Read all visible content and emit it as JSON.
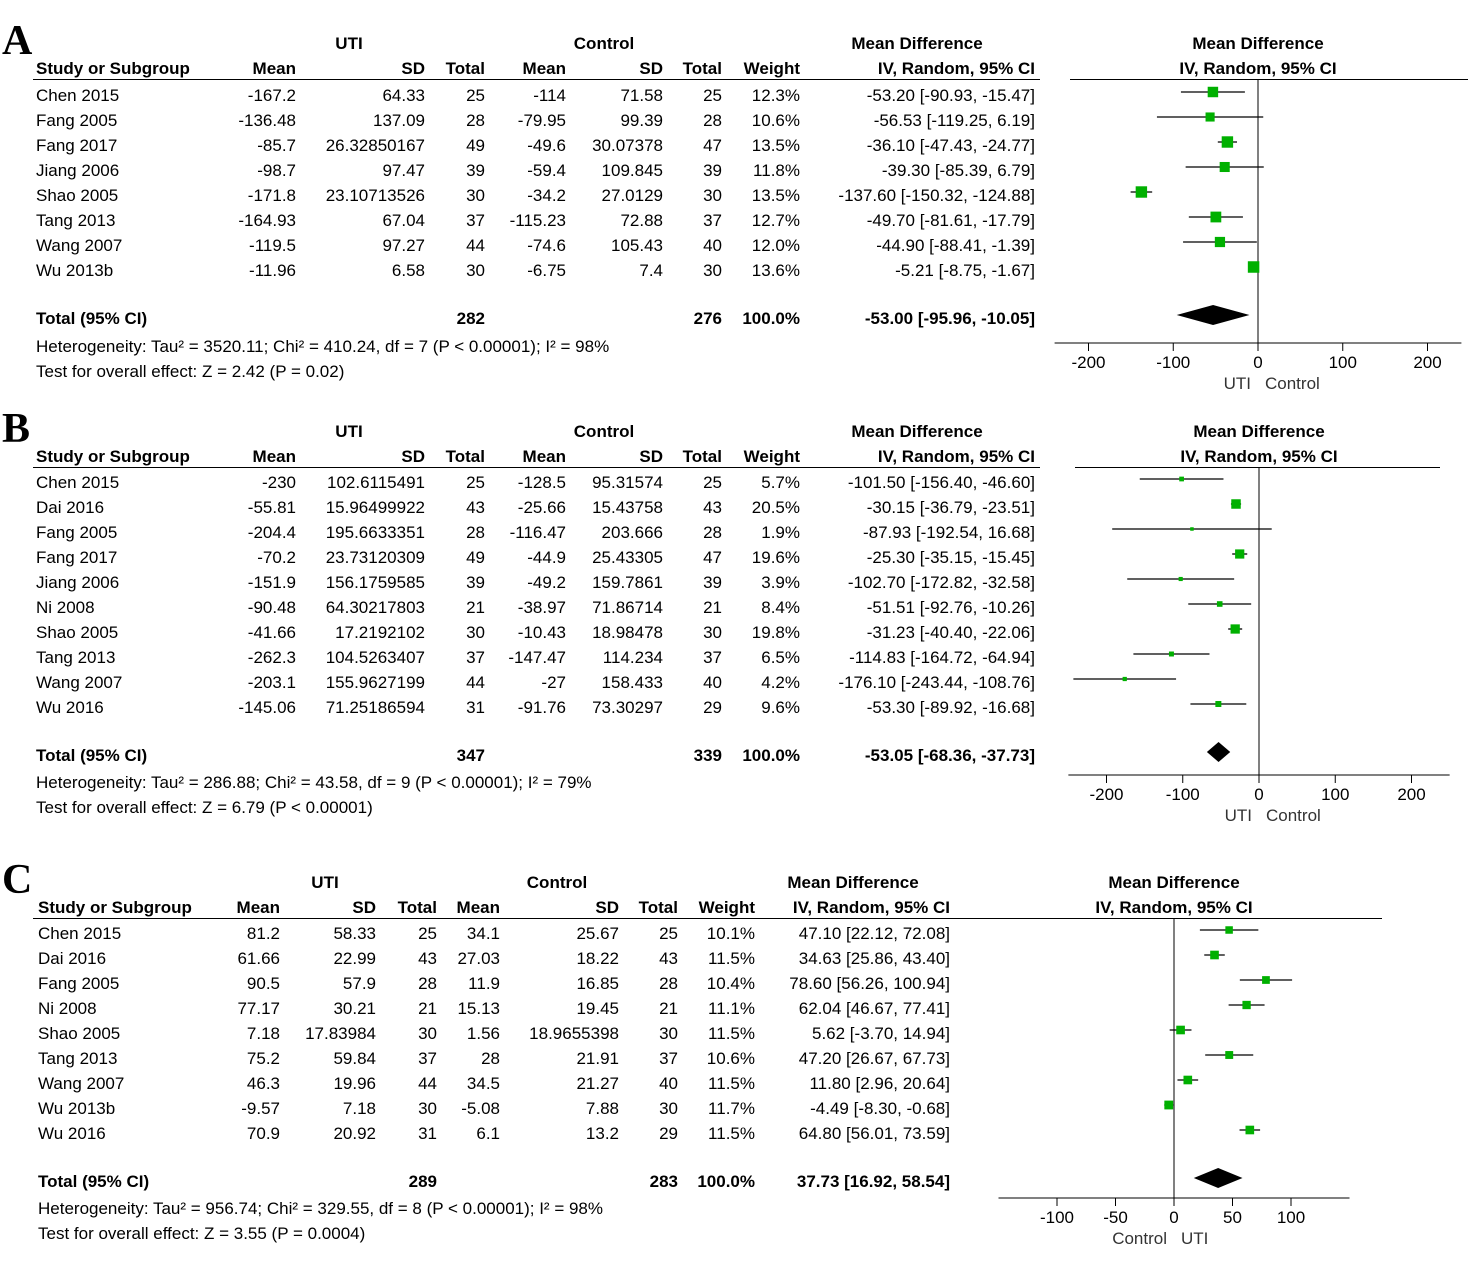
{
  "chart_data": [
    {
      "type": "forest",
      "panel_label": "A",
      "group1": "UTI",
      "group2": "Control",
      "column_headers": {
        "study": "Study or Subgroup",
        "mean": "Mean",
        "sd": "SD",
        "total": "Total",
        "weight": "Weight",
        "md_title": "Mean Difference",
        "md_method": "IV, Random, 95% CI"
      },
      "studies": [
        {
          "name": "Chen 2015",
          "m1": "-167.2",
          "sd1": "64.33",
          "n1": "25",
          "m2": "-114",
          "sd2": "71.58",
          "n2": "25",
          "weight": "12.3%",
          "ci_text": "-53.20 [-90.93, -15.47]",
          "md": -53.2,
          "lo": -90.93,
          "hi": -15.47,
          "w": 12.3
        },
        {
          "name": "Fang 2005",
          "m1": "-136.48",
          "sd1": "137.09",
          "n1": "28",
          "m2": "-79.95",
          "sd2": "99.39",
          "n2": "28",
          "weight": "10.6%",
          "ci_text": "-56.53 [-119.25, 6.19]",
          "md": -56.53,
          "lo": -119.25,
          "hi": 6.19,
          "w": 10.6
        },
        {
          "name": "Fang 2017",
          "m1": "-85.7",
          "sd1": "26.32850167",
          "n1": "49",
          "m2": "-49.6",
          "sd2": "30.07378",
          "n2": "47",
          "weight": "13.5%",
          "ci_text": "-36.10 [-47.43, -24.77]",
          "md": -36.1,
          "lo": -47.43,
          "hi": -24.77,
          "w": 13.5
        },
        {
          "name": "Jiang 2006",
          "m1": "-98.7",
          "sd1": "97.47",
          "n1": "39",
          "m2": "-59.4",
          "sd2": "109.845",
          "n2": "39",
          "weight": "11.8%",
          "ci_text": "-39.30 [-85.39, 6.79]",
          "md": -39.3,
          "lo": -85.39,
          "hi": 6.79,
          "w": 11.8
        },
        {
          "name": "Shao 2005",
          "m1": "-171.8",
          "sd1": "23.10713526",
          "n1": "30",
          "m2": "-34.2",
          "sd2": "27.0129",
          "n2": "30",
          "weight": "13.5%",
          "ci_text": "-137.60 [-150.32, -124.88]",
          "md": -137.6,
          "lo": -150.32,
          "hi": -124.88,
          "w": 13.5
        },
        {
          "name": "Tang 2013",
          "m1": "-164.93",
          "sd1": "67.04",
          "n1": "37",
          "m2": "-115.23",
          "sd2": "72.88",
          "n2": "37",
          "weight": "12.7%",
          "ci_text": "-49.70 [-81.61, -17.79]",
          "md": -49.7,
          "lo": -81.61,
          "hi": -17.79,
          "w": 12.7
        },
        {
          "name": "Wang 2007",
          "m1": "-119.5",
          "sd1": "97.27",
          "n1": "44",
          "m2": "-74.6",
          "sd2": "105.43",
          "n2": "40",
          "weight": "12.0%",
          "ci_text": "-44.90 [-88.41, -1.39]",
          "md": -44.9,
          "lo": -88.41,
          "hi": -1.39,
          "w": 12.0
        },
        {
          "name": "Wu 2013b",
          "m1": "-11.96",
          "sd1": "6.58",
          "n1": "30",
          "m2": "-6.75",
          "sd2": "7.4",
          "n2": "30",
          "weight": "13.6%",
          "ci_text": "-5.21 [-8.75, -1.67]",
          "md": -5.21,
          "lo": -8.75,
          "hi": -1.67,
          "w": 13.6
        }
      ],
      "total": {
        "label": "Total (95% CI)",
        "n1": "282",
        "n2": "276",
        "weight": "100.0%",
        "ci_text": "-53.00 [-95.96, -10.05]",
        "md": -53.0,
        "lo": -95.96,
        "hi": -10.05
      },
      "heterogeneity": "Heterogeneity: Tau² = 3520.11; Chi² = 410.24, df = 7 (P < 0.00001); I² = 98%",
      "overall_test": "Test for overall effect: Z = 2.42 (P = 0.02)",
      "xlim": [
        -240,
        240
      ],
      "xticks": [
        -200,
        -100,
        0,
        100,
        200
      ],
      "xticklabels": [
        "-200",
        "-100",
        "0",
        "100",
        "200"
      ],
      "favours_left": "UTI",
      "favours_right": "Control"
    },
    {
      "type": "forest",
      "panel_label": "B",
      "group1": "UTI",
      "group2": "Control",
      "column_headers": {
        "study": "Study or Subgroup",
        "mean": "Mean",
        "sd": "SD",
        "total": "Total",
        "weight": "Weight",
        "md_title": "Mean Difference",
        "md_method": "IV, Random, 95% CI"
      },
      "studies": [
        {
          "name": "Chen 2015",
          "m1": "-230",
          "sd1": "102.6115491",
          "n1": "25",
          "m2": "-128.5",
          "sd2": "95.31574",
          "n2": "25",
          "weight": "5.7%",
          "ci_text": "-101.50 [-156.40, -46.60]",
          "md": -101.5,
          "lo": -156.4,
          "hi": -46.6,
          "w": 5.7
        },
        {
          "name": "Dai 2016",
          "m1": "-55.81",
          "sd1": "15.96499922",
          "n1": "43",
          "m2": "-25.66",
          "sd2": "15.43758",
          "n2": "43",
          "weight": "20.5%",
          "ci_text": "-30.15 [-36.79, -23.51]",
          "md": -30.15,
          "lo": -36.79,
          "hi": -23.51,
          "w": 20.5
        },
        {
          "name": "Fang 2005",
          "m1": "-204.4",
          "sd1": "195.6633351",
          "n1": "28",
          "m2": "-116.47",
          "sd2": "203.666",
          "n2": "28",
          "weight": "1.9%",
          "ci_text": "-87.93 [-192.54, 16.68]",
          "md": -87.93,
          "lo": -192.54,
          "hi": 16.68,
          "w": 1.9
        },
        {
          "name": "Fang 2017",
          "m1": "-70.2",
          "sd1": "23.73120309",
          "n1": "49",
          "m2": "-44.9",
          "sd2": "25.43305",
          "n2": "47",
          "weight": "19.6%",
          "ci_text": "-25.30 [-35.15, -15.45]",
          "md": -25.3,
          "lo": -35.15,
          "hi": -15.45,
          "w": 19.6
        },
        {
          "name": "Jiang 2006",
          "m1": "-151.9",
          "sd1": "156.1759585",
          "n1": "39",
          "m2": "-49.2",
          "sd2": "159.7861",
          "n2": "39",
          "weight": "3.9%",
          "ci_text": "-102.70 [-172.82, -32.58]",
          "md": -102.7,
          "lo": -172.82,
          "hi": -32.58,
          "w": 3.9
        },
        {
          "name": "Ni 2008",
          "m1": "-90.48",
          "sd1": "64.30217803",
          "n1": "21",
          "m2": "-38.97",
          "sd2": "71.86714",
          "n2": "21",
          "weight": "8.4%",
          "ci_text": "-51.51 [-92.76, -10.26]",
          "md": -51.51,
          "lo": -92.76,
          "hi": -10.26,
          "w": 8.4
        },
        {
          "name": "Shao 2005",
          "m1": "-41.66",
          "sd1": "17.2192102",
          "n1": "30",
          "m2": "-10.43",
          "sd2": "18.98478",
          "n2": "30",
          "weight": "19.8%",
          "ci_text": "-31.23 [-40.40, -22.06]",
          "md": -31.23,
          "lo": -40.4,
          "hi": -22.06,
          "w": 19.8
        },
        {
          "name": "Tang 2013",
          "m1": "-262.3",
          "sd1": "104.5263407",
          "n1": "37",
          "m2": "-147.47",
          "sd2": "114.234",
          "n2": "37",
          "weight": "6.5%",
          "ci_text": "-114.83 [-164.72, -64.94]",
          "md": -114.83,
          "lo": -164.72,
          "hi": -64.94,
          "w": 6.5
        },
        {
          "name": "Wang 2007",
          "m1": "-203.1",
          "sd1": "155.9627199",
          "n1": "44",
          "m2": "-27",
          "sd2": "158.433",
          "n2": "40",
          "weight": "4.2%",
          "ci_text": "-176.10 [-243.44, -108.76]",
          "md": -176.1,
          "lo": -243.44,
          "hi": -108.76,
          "w": 4.2
        },
        {
          "name": "Wu 2016",
          "m1": "-145.06",
          "sd1": "71.25186594",
          "n1": "31",
          "m2": "-91.76",
          "sd2": "73.30297",
          "n2": "29",
          "weight": "9.6%",
          "ci_text": "-53.30 [-89.92, -16.68]",
          "md": -53.3,
          "lo": -89.92,
          "hi": -16.68,
          "w": 9.6
        }
      ],
      "total": {
        "label": "Total (95% CI)",
        "n1": "347",
        "n2": "339",
        "weight": "100.0%",
        "ci_text": "-53.05 [-68.36, -37.73]",
        "md": -53.05,
        "lo": -68.36,
        "hi": -37.73
      },
      "heterogeneity": "Heterogeneity: Tau² = 286.88; Chi² = 43.58, df = 9 (P < 0.00001); I² = 79%",
      "overall_test": "Test for overall effect: Z = 6.79 (P < 0.00001)",
      "xlim": [
        -250,
        250
      ],
      "xticks": [
        -200,
        -100,
        0,
        100,
        200
      ],
      "xticklabels": [
        "-200",
        "-100",
        "0",
        "100",
        "200"
      ],
      "favours_left": "UTI",
      "favours_right": "Control"
    },
    {
      "type": "forest",
      "panel_label": "C",
      "group1": "UTI",
      "group2": "Control",
      "column_headers": {
        "study": "Study or Subgroup",
        "mean": "Mean",
        "sd": "SD",
        "total": "Total",
        "weight": "Weight",
        "md_title": "Mean Difference",
        "md_method": "IV, Random, 95% CI"
      },
      "studies": [
        {
          "name": "Chen 2015",
          "m1": "81.2",
          "sd1": "58.33",
          "n1": "25",
          "m2": "34.1",
          "sd2": "25.67",
          "n2": "25",
          "weight": "10.1%",
          "ci_text": "47.10 [22.12, 72.08]",
          "md": 47.1,
          "lo": 22.12,
          "hi": 72.08,
          "w": 10.1
        },
        {
          "name": "Dai 2016",
          "m1": "61.66",
          "sd1": "22.99",
          "n1": "43",
          "m2": "27.03",
          "sd2": "18.22",
          "n2": "43",
          "weight": "11.5%",
          "ci_text": "34.63 [25.86, 43.40]",
          "md": 34.63,
          "lo": 25.86,
          "hi": 43.4,
          "w": 11.5
        },
        {
          "name": "Fang 2005",
          "m1": "90.5",
          "sd1": "57.9",
          "n1": "28",
          "m2": "11.9",
          "sd2": "16.85",
          "n2": "28",
          "weight": "10.4%",
          "ci_text": "78.60 [56.26, 100.94]",
          "md": 78.6,
          "lo": 56.26,
          "hi": 100.94,
          "w": 10.4
        },
        {
          "name": "Ni 2008",
          "m1": "77.17",
          "sd1": "30.21",
          "n1": "21",
          "m2": "15.13",
          "sd2": "19.45",
          "n2": "21",
          "weight": "11.1%",
          "ci_text": "62.04 [46.67, 77.41]",
          "md": 62.04,
          "lo": 46.67,
          "hi": 77.41,
          "w": 11.1
        },
        {
          "name": "Shao 2005",
          "m1": "7.18",
          "sd1": "17.83984",
          "n1": "30",
          "m2": "1.56",
          "sd2": "18.9655398",
          "n2": "30",
          "weight": "11.5%",
          "ci_text": "5.62 [-3.70, 14.94]",
          "md": 5.62,
          "lo": -3.7,
          "hi": 14.94,
          "w": 11.5
        },
        {
          "name": "Tang 2013",
          "m1": "75.2",
          "sd1": "59.84",
          "n1": "37",
          "m2": "28",
          "sd2": "21.91",
          "n2": "37",
          "weight": "10.6%",
          "ci_text": "47.20 [26.67, 67.73]",
          "md": 47.2,
          "lo": 26.67,
          "hi": 67.73,
          "w": 10.6
        },
        {
          "name": "Wang 2007",
          "m1": "46.3",
          "sd1": "19.96",
          "n1": "44",
          "m2": "34.5",
          "sd2": "21.27",
          "n2": "40",
          "weight": "11.5%",
          "ci_text": "11.80 [2.96, 20.64]",
          "md": 11.8,
          "lo": 2.96,
          "hi": 20.64,
          "w": 11.5
        },
        {
          "name": "Wu 2013b",
          "m1": "-9.57",
          "sd1": "7.18",
          "n1": "30",
          "m2": "-5.08",
          "sd2": "7.88",
          "n2": "30",
          "weight": "11.7%",
          "ci_text": "-4.49 [-8.30, -0.68]",
          "md": -4.49,
          "lo": -8.3,
          "hi": -0.68,
          "w": 11.7
        },
        {
          "name": "Wu 2016",
          "m1": "70.9",
          "sd1": "20.92",
          "n1": "31",
          "m2": "6.1",
          "sd2": "13.2",
          "n2": "29",
          "weight": "11.5%",
          "ci_text": "64.80 [56.01, 73.59]",
          "md": 64.8,
          "lo": 56.01,
          "hi": 73.59,
          "w": 11.5
        }
      ],
      "total": {
        "label": "Total (95% CI)",
        "n1": "289",
        "n2": "283",
        "weight": "100.0%",
        "ci_text": "37.73 [16.92, 58.54]",
        "md": 37.73,
        "lo": 16.92,
        "hi": 58.54
      },
      "heterogeneity": "Heterogeneity: Tau² = 956.74; Chi² = 329.55, df = 8 (P < 0.00001); I² = 98%",
      "overall_test": "Test for overall effect: Z = 3.55 (P = 0.0004)",
      "xlim": [
        -150,
        150
      ],
      "xticks": [
        -100,
        -50,
        0,
        50,
        100
      ],
      "xticklabels": [
        "-100",
        "-50",
        "0",
        "50",
        "100"
      ],
      "favours_left": "Control",
      "favours_right": "UTI"
    }
  ],
  "colors": {
    "marker": "#00b000",
    "line": "#000000",
    "diamond": "#000000"
  }
}
